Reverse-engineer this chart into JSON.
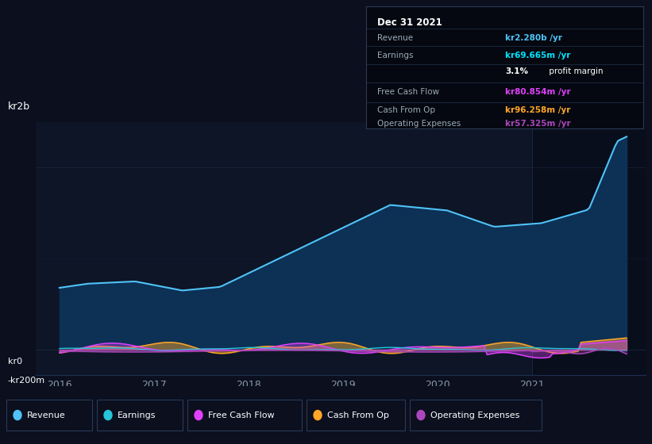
{
  "bg_color": "#0b0f1e",
  "plot_bg_color": "#0d1526",
  "grid_color": "#1e2d45",
  "title_date": "Dec 31 2021",
  "tooltip": {
    "revenue_label": "Revenue",
    "revenue_value": "kr2.280b /yr",
    "revenue_color": "#4fc3f7",
    "earnings_label": "Earnings",
    "earnings_value": "kr69.665m /yr",
    "earnings_color": "#00e5ff",
    "margin_text": "3.1%",
    "margin_text2": " profit margin",
    "margin_color": "#ffffff",
    "fcf_label": "Free Cash Flow",
    "fcf_value": "kr80.854m /yr",
    "fcf_color": "#e040fb",
    "cashop_label": "Cash From Op",
    "cashop_value": "kr96.258m /yr",
    "cashop_color": "#ffa726",
    "opex_label": "Operating Expenses",
    "opex_value": "kr57.325m /yr",
    "opex_color": "#ab47bc"
  },
  "x_ticks": [
    "2016",
    "2017",
    "2018",
    "2019",
    "2020",
    "2021"
  ],
  "y_label_top": "kr2b",
  "y_label_zero": "kr0",
  "y_label_neg": "-kr200m",
  "ylim_min": -280000000,
  "ylim_max": 2500000000,
  "revenue_color": "#4fc3f7",
  "revenue_fill_color": "#0d3055",
  "earnings_color": "#26c6da",
  "fcf_color": "#e040fb",
  "cashop_color": "#ffa726",
  "opex_color": "#ab47bc",
  "legend_items": [
    "Revenue",
    "Earnings",
    "Free Cash Flow",
    "Cash From Op",
    "Operating Expenses"
  ],
  "legend_colors": [
    "#4fc3f7",
    "#26c6da",
    "#e040fb",
    "#ffa726",
    "#ab47bc"
  ]
}
